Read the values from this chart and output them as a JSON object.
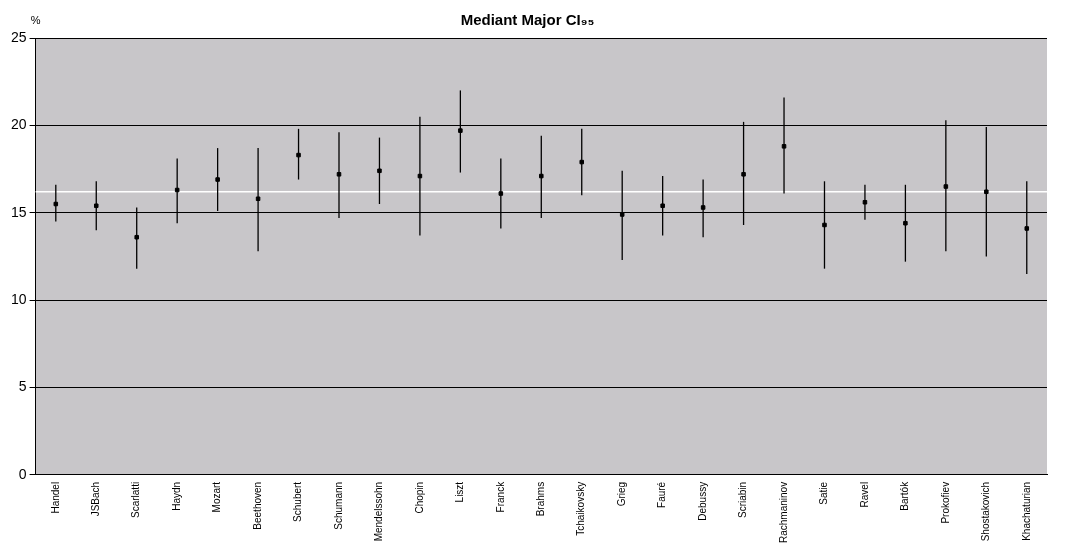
{
  "chart_data": {
    "type": "scatter",
    "title": "Mediant Major CI₉₅",
    "ylabel": "%",
    "categories": [
      "Handel",
      "JSBach",
      "Scarlatti",
      "Haydn",
      "Mozart",
      "Beethoven",
      "Schubert",
      "Schumann",
      "Mendelssohn",
      "Chopin",
      "Liszt",
      "Franck",
      "Brahms",
      "Tchaikovsky",
      "Grieg",
      "Fauré",
      "Debussy",
      "Scriabin",
      "Rachmaninov",
      "Satie",
      "Ravel",
      "Bartók",
      "Prokofiev",
      "Shostakovich",
      "Khachaturian"
    ],
    "values": [
      15.5,
      15.4,
      13.6,
      16.3,
      16.9,
      15.8,
      18.3,
      17.2,
      17.4,
      17.1,
      19.7,
      16.1,
      17.1,
      17.9,
      14.9,
      15.4,
      15.3,
      17.2,
      18.8,
      14.3,
      15.6,
      14.4,
      16.5,
      16.2,
      14.1
    ],
    "errors": [
      [
        14.5,
        16.6
      ],
      [
        14.0,
        16.8
      ],
      [
        11.8,
        15.3
      ],
      [
        14.4,
        18.1
      ],
      [
        15.1,
        18.7
      ],
      [
        12.8,
        18.7
      ],
      [
        16.9,
        19.8
      ],
      [
        14.7,
        19.6
      ],
      [
        15.5,
        19.3
      ],
      [
        13.7,
        20.5
      ],
      [
        17.3,
        22.0
      ],
      [
        14.1,
        18.1
      ],
      [
        14.7,
        19.4
      ],
      [
        16.0,
        19.8
      ],
      [
        12.3,
        17.4
      ],
      [
        13.7,
        17.1
      ],
      [
        13.6,
        16.9
      ],
      [
        14.3,
        20.2
      ],
      [
        16.1,
        21.6
      ],
      [
        11.8,
        16.8
      ],
      [
        14.6,
        16.6
      ],
      [
        12.2,
        16.6
      ],
      [
        12.8,
        20.3
      ],
      [
        12.5,
        19.9
      ],
      [
        11.5,
        16.8
      ]
    ],
    "color": "#000000",
    "marker": "square",
    "ylim": [
      0,
      25
    ],
    "yticks": [
      0,
      5,
      10,
      15,
      20,
      25
    ],
    "grid": "y",
    "legend": false,
    "ref_lines": [
      {
        "axis": "y",
        "value": 16.2,
        "color": "#ffffff"
      }
    ]
  }
}
